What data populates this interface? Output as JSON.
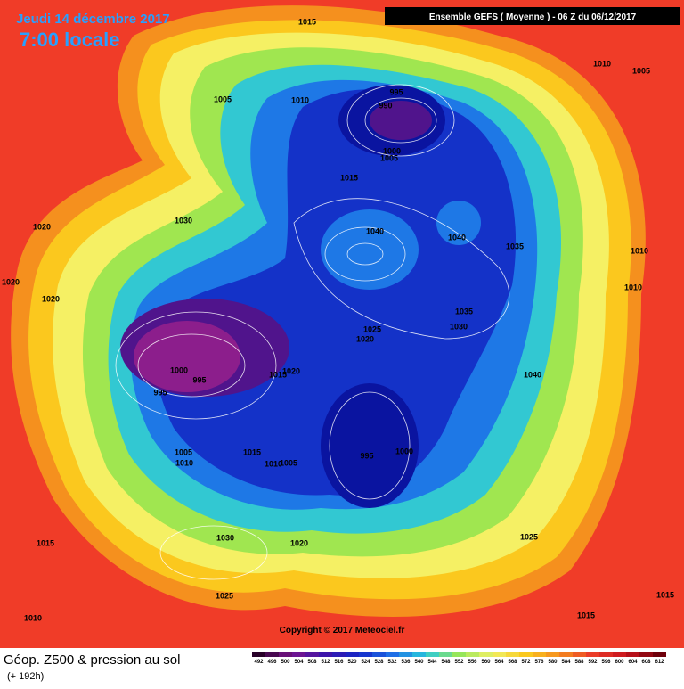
{
  "header": {
    "date": "Jeudi 14 décembre 2017",
    "time": "7:00 locale",
    "run": "Ensemble GEFS  ( Moyenne )  -  06 Z du 06/12/2017"
  },
  "copyright": "Copyright © 2017 Meteociel.fr",
  "footer": {
    "title": "Géop. Z500 & pression au sol",
    "lead": "(+ 192h)"
  },
  "colorbar": {
    "labels": [
      "492",
      "496",
      "500",
      "504",
      "508",
      "512",
      "516",
      "520",
      "524",
      "528",
      "532",
      "536",
      "540",
      "544",
      "548",
      "552",
      "556",
      "560",
      "564",
      "568",
      "572",
      "576",
      "580",
      "584",
      "588",
      "592",
      "596",
      "600",
      "604",
      "608",
      "612"
    ]
  },
  "contour_labels": [
    "1015",
    "1010",
    "1005",
    "1005",
    "1010",
    "995",
    "990",
    "1000",
    "1005",
    "1015",
    "1030",
    "1020",
    "1040",
    "1040",
    "1035",
    "1010",
    "1020",
    "1020",
    "1010",
    "1035",
    "1030",
    "1025",
    "1020",
    "1020",
    "1015",
    "1000",
    "995",
    "995",
    "1040",
    "1005",
    "1010",
    "1015",
    "1010",
    "1005",
    "995",
    "1000",
    "1030",
    "1020",
    "1025",
    "1015",
    "1025",
    "1015",
    "1010",
    "1015"
  ]
}
